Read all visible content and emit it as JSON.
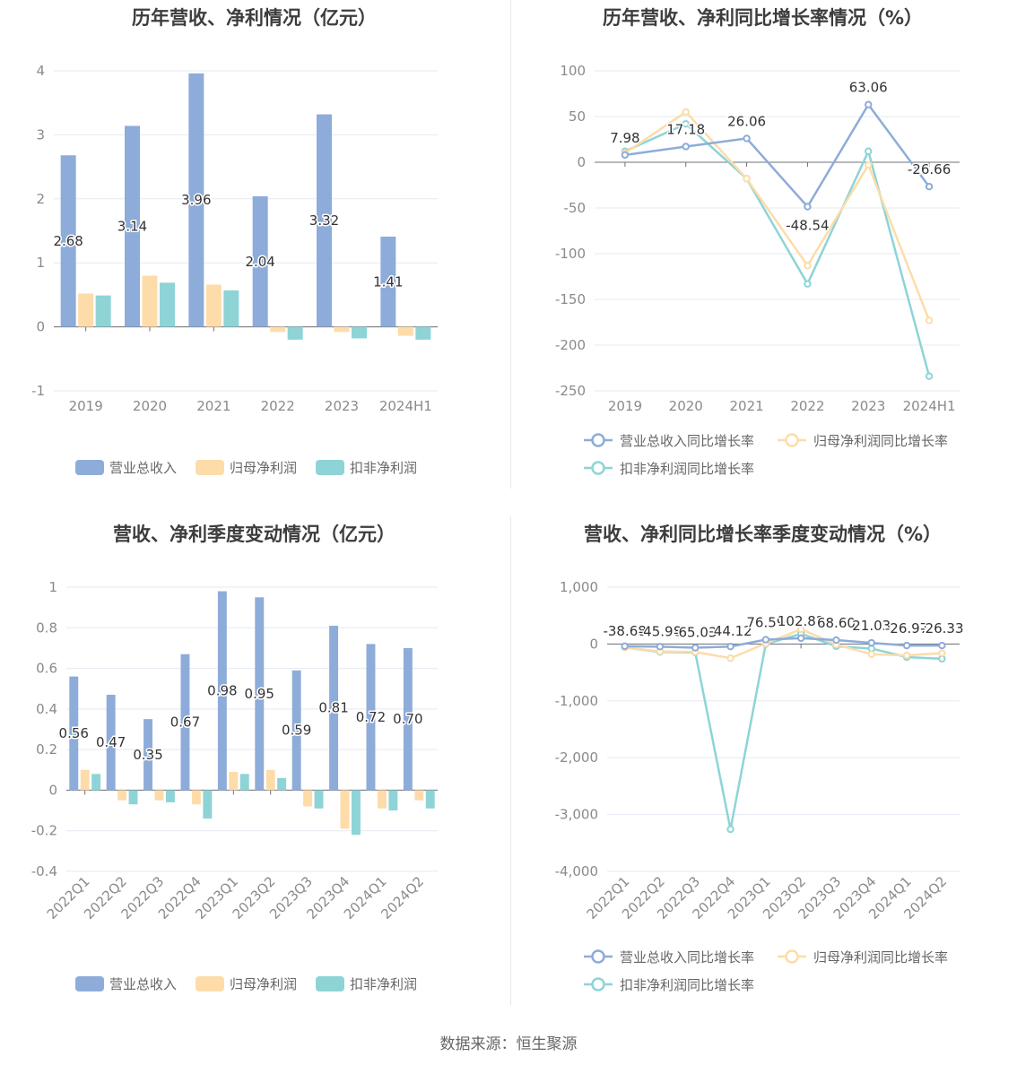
{
  "source_text": "数据来源：恒生聚源",
  "colors": {
    "revenue": "#8eacd9",
    "parent_profit": "#fddcaa",
    "deducted_profit": "#8ed4d6",
    "grid": "#e6e9f2",
    "axis": "#6e7079"
  },
  "chart_data": [
    {
      "type": "bar",
      "title": "历年营收、净利情况（亿元）",
      "categories": [
        "2019",
        "2020",
        "2021",
        "2022",
        "2023",
        "2024H1"
      ],
      "series": [
        {
          "name": "营业总收入",
          "values": [
            2.68,
            3.14,
            3.96,
            2.04,
            3.32,
            1.41
          ],
          "labels": [
            "2.68",
            "3.14",
            "3.96",
            "2.04",
            "3.32",
            "1.41"
          ]
        },
        {
          "name": "归母净利润",
          "values": [
            0.52,
            0.8,
            0.66,
            -0.08,
            -0.08,
            -0.14
          ]
        },
        {
          "name": "扣非净利润",
          "values": [
            0.49,
            0.69,
            0.57,
            -0.2,
            -0.18,
            -0.2
          ]
        }
      ],
      "ylim": [
        -1,
        4
      ],
      "yticks": [
        "-1",
        "0",
        "1",
        "2",
        "3",
        "4"
      ],
      "legend": "bottom"
    },
    {
      "type": "line",
      "title": "历年营收、净利同比增长率情况（%）",
      "categories": [
        "2019",
        "2020",
        "2021",
        "2022",
        "2023",
        "2024H1"
      ],
      "series": [
        {
          "name": "营业总收入同比增长率",
          "values": [
            7.98,
            17.18,
            26.06,
            -48.54,
            63.06,
            -26.66
          ],
          "labels": [
            "7.98",
            "17.18",
            "26.06",
            "-48.54",
            "63.06",
            "-26.66"
          ]
        },
        {
          "name": "归母净利润同比增长率",
          "values": [
            10,
            55,
            -18,
            -113,
            -3,
            -173
          ]
        },
        {
          "name": "扣非净利润同比增长率",
          "values": [
            12,
            42,
            -18,
            -133,
            12,
            -234
          ]
        }
      ],
      "ylim": [
        -250,
        100
      ],
      "yticks": [
        "-250",
        "-200",
        "-150",
        "-100",
        "-50",
        "0",
        "50",
        "100"
      ],
      "legend": "bottom"
    },
    {
      "type": "bar",
      "title": "营收、净利季度变动情况（亿元）",
      "categories": [
        "2022Q1",
        "2022Q2",
        "2022Q3",
        "2022Q4",
        "2023Q1",
        "2023Q2",
        "2023Q3",
        "2023Q4",
        "2024Q1",
        "2024Q2"
      ],
      "series": [
        {
          "name": "营业总收入",
          "values": [
            0.56,
            0.47,
            0.35,
            0.67,
            0.98,
            0.95,
            0.59,
            0.81,
            0.72,
            0.7
          ],
          "labels": [
            "0.56",
            "0.47",
            "0.35",
            "0.67",
            "0.98",
            "0.95",
            "0.59",
            "0.81",
            "0.72",
            "0.70"
          ]
        },
        {
          "name": "归母净利润",
          "values": [
            0.1,
            -0.05,
            -0.05,
            -0.07,
            0.09,
            0.1,
            -0.08,
            -0.19,
            -0.09,
            -0.05
          ]
        },
        {
          "name": "扣非净利润",
          "values": [
            0.08,
            -0.07,
            -0.06,
            -0.14,
            0.08,
            0.06,
            -0.09,
            -0.22,
            -0.1,
            -0.09
          ]
        }
      ],
      "ylim": [
        -0.4,
        1
      ],
      "yticks": [
        "-0.4",
        "-0.2",
        "0",
        "0.2",
        "0.4",
        "0.6",
        "0.8",
        "1"
      ],
      "legend": "bottom"
    },
    {
      "type": "line",
      "title": "营收、净利同比增长率季度变动情况（%）",
      "categories": [
        "2022Q1",
        "2022Q2",
        "2022Q3",
        "2022Q4",
        "2023Q1",
        "2023Q2",
        "2023Q3",
        "2023Q4",
        "2024Q1",
        "2024Q2"
      ],
      "series": [
        {
          "name": "营业总收入同比增长率",
          "values": [
            -38.68,
            -45.98,
            -65.03,
            -44.12,
            76.59,
            102.82,
            68.6,
            21.03,
            -26.97,
            -26.33
          ],
          "labels": [
            "-38.68",
            "-45.98",
            "-65.03",
            "-44.12",
            "76.59",
            "102.82",
            "68.60",
            "21.03",
            "-26.97",
            "-26.33"
          ]
        },
        {
          "name": "归母净利润同比增长率",
          "values": [
            -60,
            -130,
            -140,
            -250,
            10,
            260,
            -10,
            -180,
            -200,
            -160
          ]
        },
        {
          "name": "扣非净利润同比增长率",
          "values": [
            -60,
            -140,
            -150,
            -3260,
            0,
            180,
            -40,
            -80,
            -230,
            -260
          ]
        }
      ],
      "ylim": [
        -4000,
        1000
      ],
      "yticks": [
        "-4,000",
        "-3,000",
        "-2,000",
        "-1,000",
        "0",
        "1,000"
      ],
      "legend": "bottom"
    }
  ]
}
